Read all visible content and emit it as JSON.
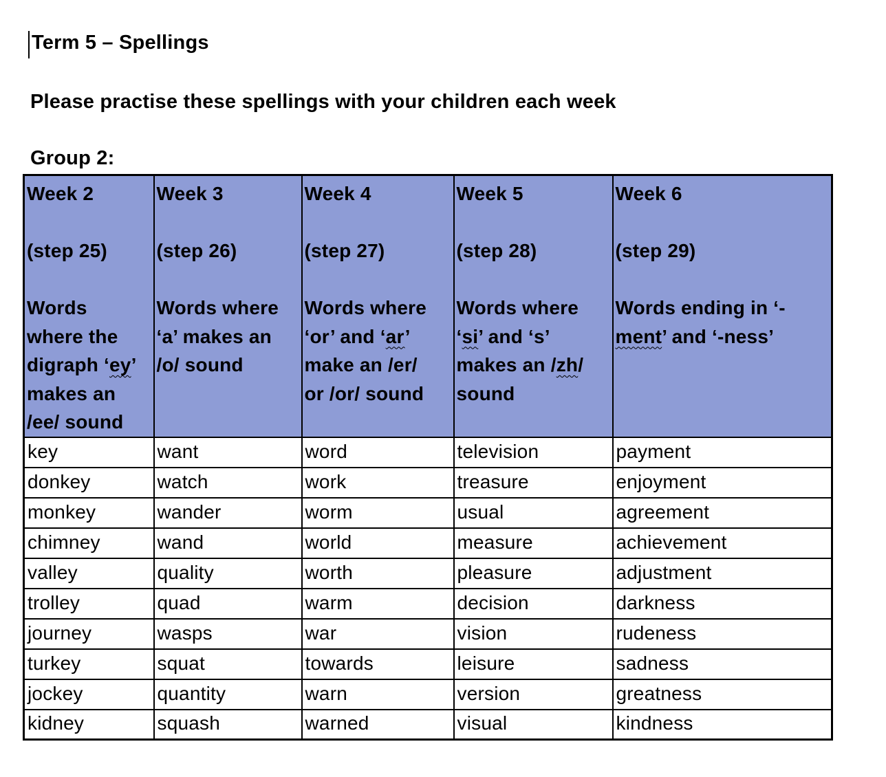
{
  "document": {
    "title": "Term 5 – Spellings",
    "subtitle": "Please practise these spellings with your children each week",
    "group_label": "Group 2:"
  },
  "colors": {
    "header_fill": "#8E9CD6",
    "border": "#000000",
    "text": "#000000"
  },
  "table": {
    "columns": [
      {
        "week": "Week 2",
        "step": "(step 25)",
        "description": [
          {
            "t": "Words"
          },
          {
            "br": true
          },
          {
            "t": "where the"
          },
          {
            "br": true
          },
          {
            "t": "digraph ‘"
          },
          {
            "t": "ey",
            "wavy": true
          },
          {
            "t": "’"
          },
          {
            "br": true
          },
          {
            "t": "makes an"
          },
          {
            "br": true
          },
          {
            "t": "/ee/ sound"
          }
        ]
      },
      {
        "week": "Week 3",
        "step": "(step 26)",
        "description": [
          {
            "t": "Words where"
          },
          {
            "br": true
          },
          {
            "t": "‘a’ makes an"
          },
          {
            "br": true
          },
          {
            "t": "/o/ sound"
          }
        ]
      },
      {
        "week": "Week 4",
        "step": "(step 27)",
        "description": [
          {
            "t": "Words where"
          },
          {
            "br": true
          },
          {
            "t": "‘or’ and ‘"
          },
          {
            "t": "ar",
            "wavy": true
          },
          {
            "t": "’"
          },
          {
            "br": true
          },
          {
            "t": "make an /er/"
          },
          {
            "br": true
          },
          {
            "t": "or /or/ sound"
          }
        ]
      },
      {
        "week": "Week 5",
        "step": "(step 28)",
        "description": [
          {
            "t": "Words where"
          },
          {
            "br": true
          },
          {
            "t": "‘"
          },
          {
            "t": "si",
            "wavy": true
          },
          {
            "t": "’ and ‘s’"
          },
          {
            "br": true
          },
          {
            "t": "makes an /"
          },
          {
            "t": "zh",
            "wavy": true
          },
          {
            "t": "/"
          },
          {
            "br": true
          },
          {
            "t": "sound"
          }
        ]
      },
      {
        "week": "Week 6",
        "step": "(step 29)",
        "description": [
          {
            "t": "Words ending in ‘-"
          },
          {
            "br": true
          },
          {
            "t": "ment",
            "wavy": true
          },
          {
            "t": "’ and ‘-ness’"
          }
        ]
      }
    ],
    "rows": [
      [
        "key",
        "want",
        "word",
        "television",
        "payment"
      ],
      [
        "donkey",
        "watch",
        "work",
        "treasure",
        "enjoyment"
      ],
      [
        "monkey",
        "wander",
        "worm",
        "usual",
        "agreement"
      ],
      [
        "chimney",
        "wand",
        "world",
        "measure",
        "achievement"
      ],
      [
        "valley",
        "quality",
        "worth",
        "pleasure",
        "adjustment"
      ],
      [
        "trolley",
        "quad",
        "warm",
        "decision",
        "darkness"
      ],
      [
        "journey",
        "wasps",
        "war",
        "vision",
        "rudeness"
      ],
      [
        "turkey",
        "squat",
        "towards",
        "leisure",
        "sadness"
      ],
      [
        "jockey",
        "quantity",
        "warn",
        "version",
        "greatness"
      ],
      [
        "kidney",
        "squash",
        "warned",
        "visual",
        "kindness"
      ]
    ]
  }
}
